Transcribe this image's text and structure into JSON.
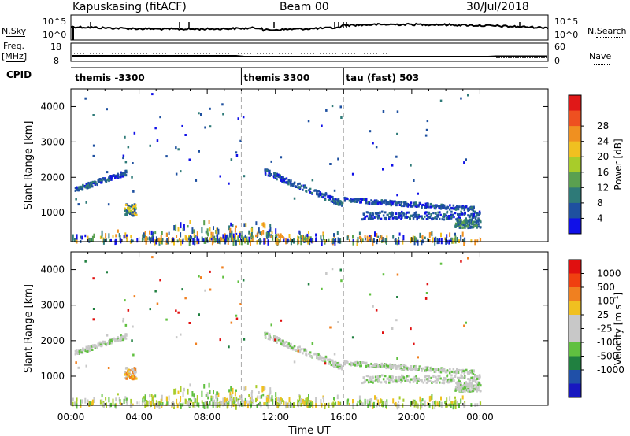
{
  "header": {
    "station": "Kapuskasing (fitACF)",
    "beam": "Beam 00",
    "date": "30/Jul/2018"
  },
  "noise_panel": {
    "left_label": "N.Sky",
    "left_top_tick": "10^5",
    "left_bottom_tick": "10^0",
    "right_top_tick": "10^5",
    "right_bottom_tick": "10^0",
    "right_label": "N.Search"
  },
  "freq_panel": {
    "left_label_top": "Freq.",
    "left_label_bottom": "[MHz]",
    "left_top_tick": "18",
    "left_bottom_tick": "8",
    "right_top_tick": "60",
    "right_bottom_tick": "0",
    "right_label": "Nave"
  },
  "cpid_panel": {
    "label": "CPID",
    "segments": [
      {
        "name": "themis -3300",
        "start_hour": 0
      },
      {
        "name": "themis 3300",
        "start_hour": 10
      },
      {
        "name": "tau (fast) 503",
        "start_hour": 16
      }
    ]
  },
  "chart_data": [
    {
      "type": "heatmap",
      "name": "power",
      "ylabel": "Slant Range [km]",
      "y_ticks": [
        "1000",
        "2000",
        "3000",
        "4000"
      ],
      "ylim": [
        180,
        4500
      ],
      "xlim": [
        0,
        28
      ],
      "colorbar_label": "Power [dB]",
      "colorbar_ticks": [
        "4",
        "8",
        "12",
        "16",
        "20",
        "24",
        "28"
      ],
      "colorbar_colors": [
        "#1010e8",
        "#1e50a0",
        "#2e7a78",
        "#5aa050",
        "#a8cc2a",
        "#f0c020",
        "#f09020",
        "#ee5020",
        "#e01818"
      ]
    },
    {
      "type": "heatmap",
      "name": "velocity",
      "ylabel": "Slant Range [km]",
      "xlabel": "Time UT",
      "x_ticks": [
        "00:00",
        "04:00",
        "08:00",
        "12:00",
        "16:00",
        "20:00",
        "00:00"
      ],
      "y_ticks": [
        "1000",
        "2000",
        "3000",
        "4000"
      ],
      "ylim": [
        180,
        4500
      ],
      "xlim": [
        0,
        28
      ],
      "colorbar_label": "Velocity [m s⁻¹]",
      "colorbar_ticks": [
        "1000",
        "500",
        "100",
        "25",
        "-25",
        "-100",
        "-500",
        "-1000"
      ],
      "colorbar_colors": [
        "#1818c0",
        "#2050a8",
        "#208040",
        "#60c040",
        "#c8c8c8",
        "#c8c8c8",
        "#f0c020",
        "#f08020",
        "#f04010",
        "#e01010"
      ]
    }
  ]
}
